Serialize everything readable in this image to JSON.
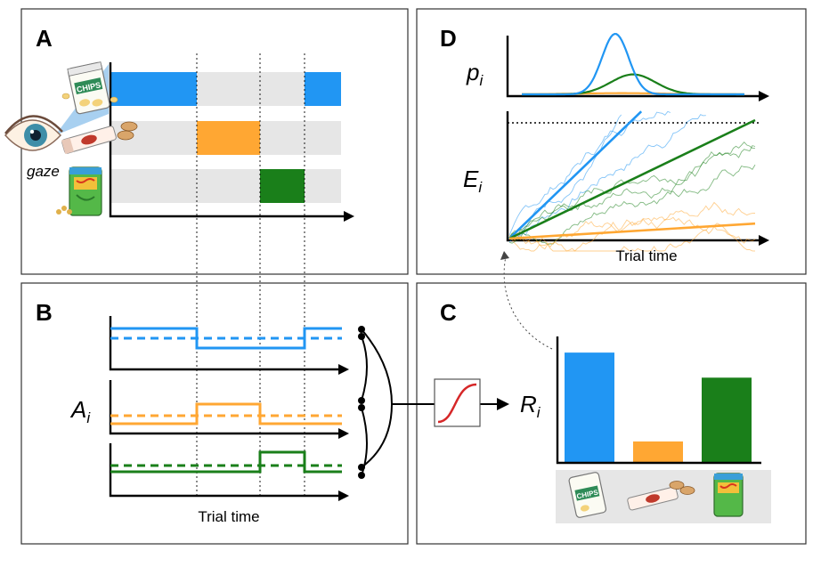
{
  "panels": {
    "a": {
      "label": "A"
    },
    "b": {
      "label": "B"
    },
    "c": {
      "label": "C"
    },
    "d": {
      "label": "D"
    }
  },
  "colors": {
    "item1": "#2196f3",
    "item2": "#ffa733",
    "item3": "#1a7f1a",
    "track": "#e6e6e6",
    "gaze_cone": "#a8d0f0",
    "sigmoid": "#d62728"
  },
  "gaze_label": "gaze",
  "chips_label": "CHIPS",
  "items": [
    {
      "name": "chips bag",
      "icon": "chips-bag-icon"
    },
    {
      "name": "candy bar",
      "icon": "candy-bar-icon"
    },
    {
      "name": "snack bag",
      "icon": "snack-bag-icon"
    }
  ],
  "symbols": {
    "p": {
      "base": "p",
      "sub": "i"
    },
    "e": {
      "base": "E",
      "sub": "i"
    },
    "a": {
      "base": "A",
      "sub": "i"
    },
    "r": {
      "base": "R",
      "sub": "i"
    }
  },
  "trial_time_label_b": "Trial time",
  "trial_time_label_d": "Trial time",
  "chart_data": [
    {
      "type": "bar",
      "panel": "C",
      "categories": [
        "chips bag",
        "candy bar",
        "snack bag"
      ],
      "values": [
        0.96,
        0.18,
        0.74
      ],
      "ylim": [
        0,
        1
      ]
    },
    {
      "type": "line",
      "panel": "D-top",
      "x": [
        0,
        1
      ],
      "series": [
        {
          "color": "item1",
          "mean": 0.42,
          "sd": 0.06,
          "peak": 1.0
        },
        {
          "color": "item3",
          "mean": 0.5,
          "sd": 0.1,
          "peak": 0.33
        },
        {
          "color": "item2",
          "mean": 0.45,
          "sd": 0.2,
          "peak": 0.02
        }
      ]
    },
    {
      "type": "line",
      "panel": "D-bottom",
      "threshold": 0.92,
      "series": [
        {
          "color": "item1",
          "slope": 1.9
        },
        {
          "color": "item3",
          "slope": 0.95
        },
        {
          "color": "item2",
          "slope": 0.12
        }
      ]
    }
  ]
}
